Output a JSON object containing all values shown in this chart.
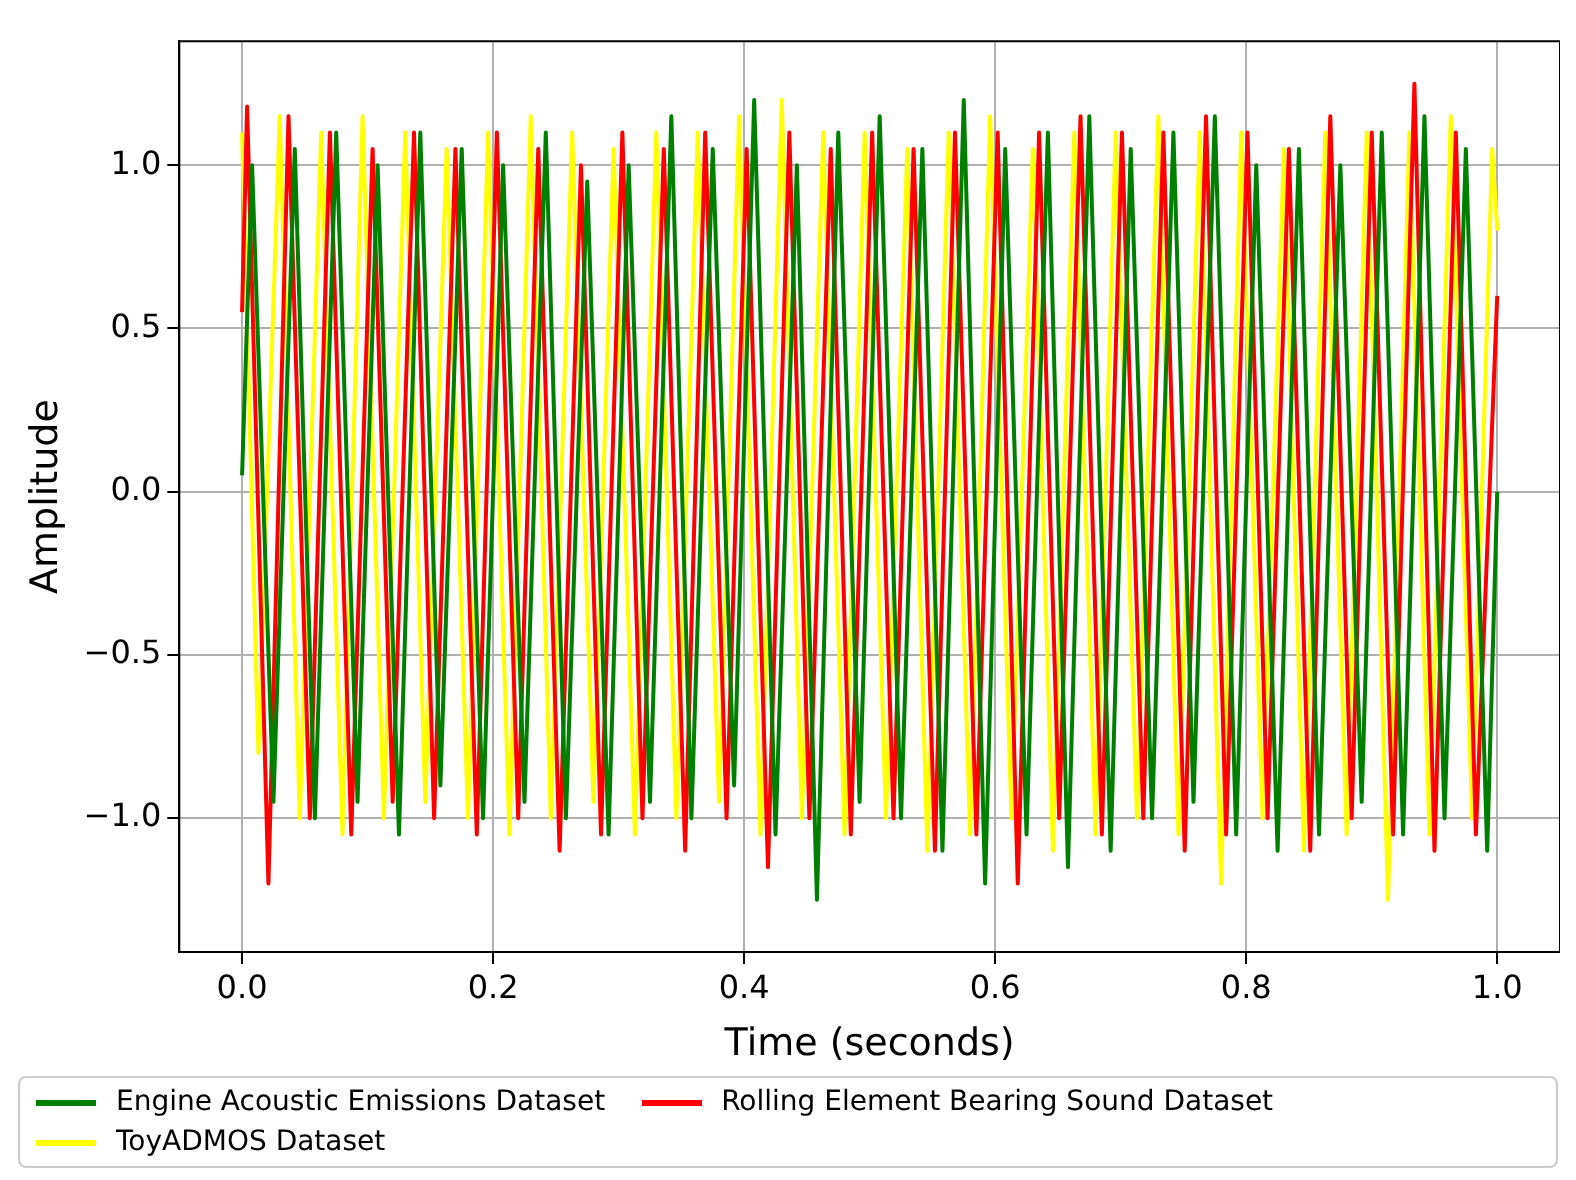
{
  "chart_data": {
    "type": "line",
    "xlabel": "Time (seconds)",
    "ylabel": "Amplitude",
    "xlim": [
      -0.05,
      1.05
    ],
    "ylim": [
      -1.41,
      1.38
    ],
    "xticks": [
      {
        "value": 0,
        "label": "0.0"
      },
      {
        "value": 0.2,
        "label": "0.2"
      },
      {
        "value": 0.4,
        "label": "0.4"
      },
      {
        "value": 0.6,
        "label": "0.6"
      },
      {
        "value": 0.8,
        "label": "0.8"
      },
      {
        "value": 1,
        "label": "1.0"
      }
    ],
    "yticks": [
      {
        "value": -1,
        "label": "−1.0"
      },
      {
        "value": -0.5,
        "label": "−0.5"
      },
      {
        "value": 0,
        "label": "0.0"
      },
      {
        "value": 0.5,
        "label": "0.5"
      },
      {
        "value": 1,
        "label": "1.0"
      }
    ],
    "grid": true,
    "legend": "bottom",
    "line_style": "solid",
    "marker": "none",
    "series": [
      {
        "name": "Engine Acoustic Emissions Dataset",
        "color": "#008000",
        "x": [
          0,
          0.008,
          0.025,
          0.042,
          0.058,
          0.075,
          0.092,
          0.108,
          0.125,
          0.142,
          0.158,
          0.175,
          0.192,
          0.208,
          0.225,
          0.242,
          0.258,
          0.275,
          0.292,
          0.308,
          0.325,
          0.342,
          0.358,
          0.375,
          0.392,
          0.408,
          0.425,
          0.442,
          0.458,
          0.475,
          0.492,
          0.508,
          0.525,
          0.542,
          0.558,
          0.575,
          0.592,
          0.608,
          0.625,
          0.642,
          0.658,
          0.675,
          0.692,
          0.708,
          0.725,
          0.742,
          0.758,
          0.775,
          0.792,
          0.808,
          0.825,
          0.842,
          0.858,
          0.875,
          0.892,
          0.908,
          0.925,
          0.942,
          0.958,
          0.975,
          0.992,
          1.0
        ],
        "values": [
          0.05,
          1.0,
          -0.95,
          1.05,
          -1.0,
          1.1,
          -0.95,
          1.0,
          -1.05,
          1.1,
          -0.9,
          1.05,
          -1.0,
          1.0,
          -0.95,
          1.1,
          -1.0,
          0.95,
          -1.05,
          1.0,
          -0.95,
          1.15,
          -1.0,
          1.05,
          -0.9,
          1.2,
          -1.05,
          1.0,
          -1.25,
          1.1,
          -0.95,
          1.15,
          -1.0,
          1.05,
          -1.1,
          1.2,
          -1.2,
          1.05,
          -1.05,
          1.1,
          -1.15,
          1.15,
          -1.1,
          1.05,
          -1.0,
          1.1,
          -0.95,
          1.15,
          -1.05,
          1.0,
          -1.1,
          1.05,
          -1.05,
          1.0,
          -0.95,
          1.1,
          -1.05,
          1.15,
          -1.0,
          1.05,
          -1.1,
          0.0
        ]
      },
      {
        "name": "Rolling Element Bearing Sound Dataset",
        "color": "#ff0000",
        "x": [
          0,
          0.004,
          0.021,
          0.037,
          0.054,
          0.07,
          0.087,
          0.104,
          0.12,
          0.137,
          0.153,
          0.17,
          0.187,
          0.203,
          0.22,
          0.236,
          0.253,
          0.27,
          0.286,
          0.303,
          0.319,
          0.336,
          0.353,
          0.369,
          0.386,
          0.402,
          0.419,
          0.436,
          0.452,
          0.469,
          0.485,
          0.502,
          0.519,
          0.535,
          0.552,
          0.568,
          0.585,
          0.602,
          0.618,
          0.635,
          0.651,
          0.668,
          0.685,
          0.701,
          0.718,
          0.734,
          0.751,
          0.768,
          0.784,
          0.801,
          0.817,
          0.834,
          0.851,
          0.867,
          0.884,
          0.9,
          0.917,
          0.934,
          0.95,
          0.967,
          0.983,
          1.0
        ],
        "values": [
          0.55,
          1.18,
          -1.2,
          1.15,
          -1.0,
          1.1,
          -1.05,
          1.05,
          -0.95,
          1.1,
          -1.0,
          1.05,
          -1.05,
          1.1,
          -1.0,
          1.05,
          -1.1,
          1.0,
          -1.05,
          1.1,
          -1.0,
          1.05,
          -1.1,
          1.1,
          -1.0,
          1.05,
          -1.15,
          1.1,
          -1.0,
          1.05,
          -1.05,
          1.1,
          -1.0,
          1.05,
          -1.1,
          1.1,
          -1.05,
          1.1,
          -1.2,
          1.1,
          -1.0,
          1.15,
          -1.05,
          1.1,
          -1.0,
          1.1,
          -1.1,
          1.15,
          -1.05,
          1.1,
          -1.0,
          1.05,
          -1.1,
          1.15,
          -1.0,
          1.1,
          -1.05,
          1.25,
          -1.1,
          1.1,
          -1.05,
          0.6
        ]
      },
      {
        "name": "ToyADMOS Dataset",
        "color": "#ffff00",
        "x": [
          0,
          0.013,
          0.03,
          0.046,
          0.063,
          0.08,
          0.096,
          0.113,
          0.13,
          0.146,
          0.163,
          0.18,
          0.196,
          0.213,
          0.23,
          0.246,
          0.263,
          0.28,
          0.296,
          0.313,
          0.33,
          0.346,
          0.363,
          0.38,
          0.396,
          0.413,
          0.43,
          0.446,
          0.463,
          0.48,
          0.496,
          0.513,
          0.53,
          0.546,
          0.563,
          0.58,
          0.596,
          0.613,
          0.63,
          0.646,
          0.663,
          0.68,
          0.696,
          0.713,
          0.73,
          0.746,
          0.763,
          0.78,
          0.796,
          0.813,
          0.83,
          0.846,
          0.863,
          0.88,
          0.896,
          0.913,
          0.93,
          0.946,
          0.963,
          0.98,
          0.996,
          1.0
        ],
        "values": [
          1.1,
          -0.8,
          1.15,
          -1.0,
          1.1,
          -1.05,
          1.15,
          -1.0,
          1.1,
          -0.95,
          1.05,
          -1.0,
          1.1,
          -1.05,
          1.15,
          -1.0,
          1.1,
          -0.95,
          1.05,
          -1.05,
          1.1,
          -1.0,
          1.1,
          -0.95,
          1.15,
          -1.05,
          1.2,
          -1.0,
          1.1,
          -1.05,
          1.1,
          -1.0,
          1.05,
          -1.1,
          1.1,
          -1.05,
          1.15,
          -1.0,
          1.05,
          -1.1,
          1.1,
          -1.05,
          1.1,
          -1.0,
          1.15,
          -1.05,
          1.1,
          -1.2,
          1.1,
          -1.0,
          1.05,
          -1.1,
          1.1,
          -1.05,
          1.1,
          -1.25,
          1.1,
          -1.05,
          1.15,
          -1.0,
          1.05,
          0.8
        ]
      }
    ]
  }
}
